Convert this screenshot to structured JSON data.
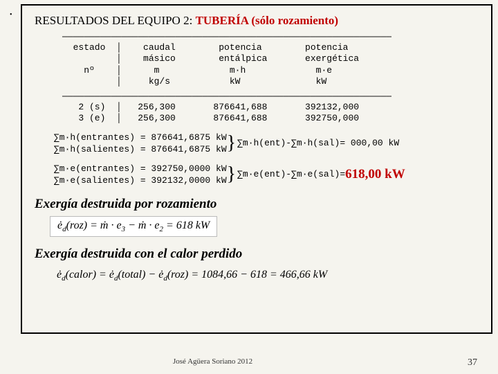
{
  "title_prefix": "RESULTADOS  DEL  EQUIPO  2: ",
  "title_red": "TUBERÍA (sólo rozamiento)",
  "table": {
    "hr": "─────────────────────────────────────────────────────────────",
    "head1": "  estado  │    caudal        potencia        potencia",
    "head2": "          │    másico        entálpica       exergética",
    "head3": "    nº    │      m             m·h             m·e",
    "head4": "          │     kg/s           kW              kW",
    "row1": "   2 (s)  │   256,300       876641,688       392132,000",
    "row2": "   3 (e)  │   256,300       876641,688       392750,000"
  },
  "sums": {
    "h_ent": "∑m·h(entrantes) = 876641,6875 kW",
    "h_sal": "∑m·h(salientes) = 876641,6875 kW",
    "h_diff": "∑m·h(ent)-∑m·h(sal)= 000,00 kW",
    "e_ent": "∑m·e(entrantes) = 392750,0000 kW",
    "e_sal": "∑m·e(salientes) = 392132,0000 kW",
    "e_diff_label": "∑m·e(ent)-∑m·e(sal)= ",
    "e_diff_value": "618,00 kW"
  },
  "heading1": "Exergía destruida por rozamiento",
  "formula1": "ė<sub>d</sub>(roz) = ṁ · e₃ − ṁ · e₂ = 618 kW",
  "heading2": "Exergía destruida con el calor perdido",
  "formula2": "ė<sub>d</sub>(calor) = ė<sub>d</sub>(total) − ė<sub>d</sub>(roz) = 1084,66 − 618 = 466,66 kW",
  "footer_author": "José Agüera Soriano 2012",
  "footer_num": "37"
}
